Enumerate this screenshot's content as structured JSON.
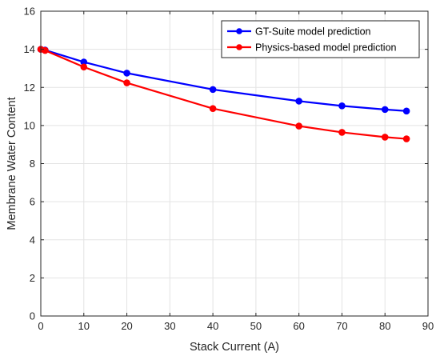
{
  "chart_data": {
    "type": "line",
    "xlabel": "Stack Current (A)",
    "ylabel": "Membrane Water Content",
    "xlim": [
      0,
      90
    ],
    "ylim": [
      0,
      16
    ],
    "xticks": [
      0,
      10,
      20,
      30,
      40,
      50,
      60,
      70,
      80,
      90
    ],
    "yticks": [
      0,
      2,
      4,
      6,
      8,
      10,
      12,
      14,
      16
    ],
    "grid": true,
    "legend_position": "top-right",
    "series": [
      {
        "name": "GT-Suite model prediction",
        "color": "#0000ff",
        "x": [
          0,
          1,
          10,
          20,
          40,
          60,
          70,
          80,
          85
        ],
        "y": [
          14.0,
          13.96,
          13.33,
          12.75,
          11.89,
          11.28,
          11.03,
          10.84,
          10.76
        ]
      },
      {
        "name": "Physics-based model prediction",
        "color": "#ff0000",
        "x": [
          0,
          1,
          10,
          20,
          40,
          60,
          70,
          80,
          85
        ],
        "y": [
          14.0,
          13.94,
          13.07,
          12.24,
          10.89,
          9.97,
          9.64,
          9.39,
          9.3
        ]
      }
    ]
  }
}
